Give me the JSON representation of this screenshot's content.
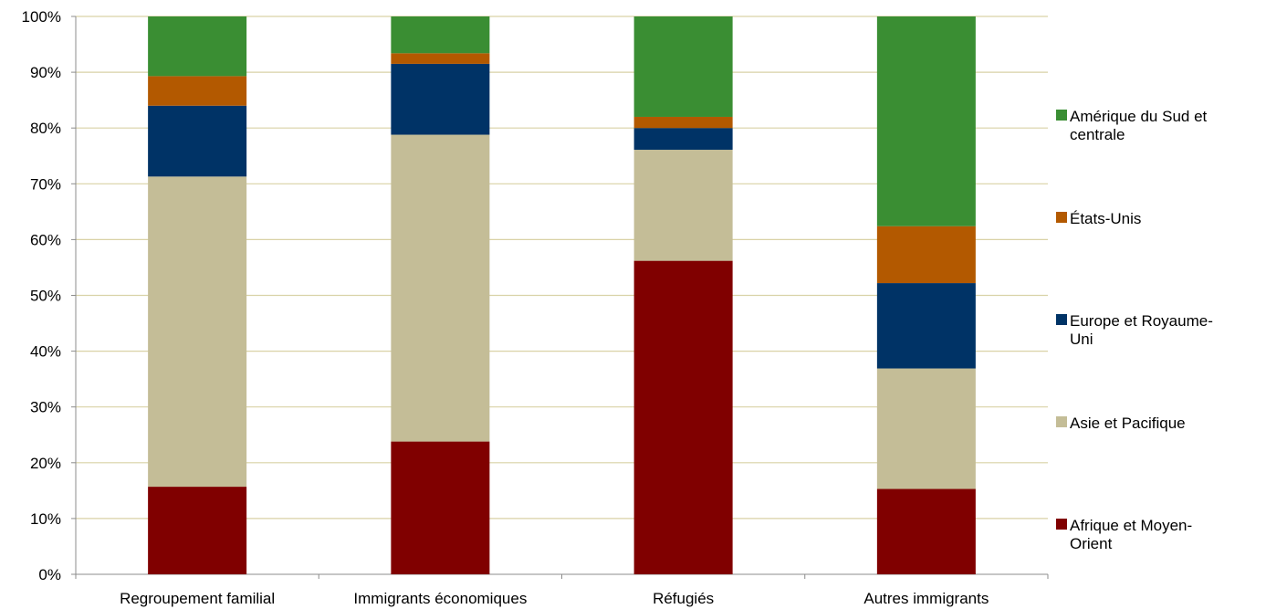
{
  "chart_data": {
    "type": "bar",
    "stacked": true,
    "percent_stacked": true,
    "categories": [
      "Regroupement familial",
      "Immigrants économiques",
      "Réfugiés",
      "Autres immigrants"
    ],
    "series": [
      {
        "name": "Afrique et Moyen-Orient",
        "legend_lines": [
          "Afrique et Moyen-",
          "Orient"
        ],
        "color": "#800000",
        "values": [
          15.7,
          23.8,
          56.2,
          15.3
        ]
      },
      {
        "name": "Asie et Pacifique",
        "legend_lines": [
          "Asie et Pacifique"
        ],
        "color": "#C4BD97",
        "values": [
          55.6,
          55.0,
          19.9,
          21.6
        ]
      },
      {
        "name": "Europe et Royaume-Uni",
        "legend_lines": [
          "Europe et Royaume-",
          "Uni"
        ],
        "color": "#003366",
        "values": [
          12.7,
          12.7,
          3.9,
          15.3
        ]
      },
      {
        "name": "États-Unis",
        "legend_lines": [
          "États-Unis"
        ],
        "color": "#B35900",
        "values": [
          5.3,
          1.9,
          2.0,
          10.2
        ]
      },
      {
        "name": "Amérique du Sud et centrale",
        "legend_lines": [
          "Amérique du Sud et",
          "centrale"
        ],
        "color": "#3A8E33",
        "values": [
          10.7,
          6.6,
          18.0,
          37.6
        ]
      }
    ],
    "y_ticks": [
      "0%",
      "10%",
      "20%",
      "30%",
      "40%",
      "50%",
      "60%",
      "70%",
      "80%",
      "90%",
      "100%"
    ],
    "ylim": [
      0,
      100
    ],
    "grid": true,
    "grid_color": "#D9D2A6",
    "legend_position": "right",
    "legend_order": "reversed",
    "title": "",
    "xlabel": "",
    "ylabel": ""
  }
}
